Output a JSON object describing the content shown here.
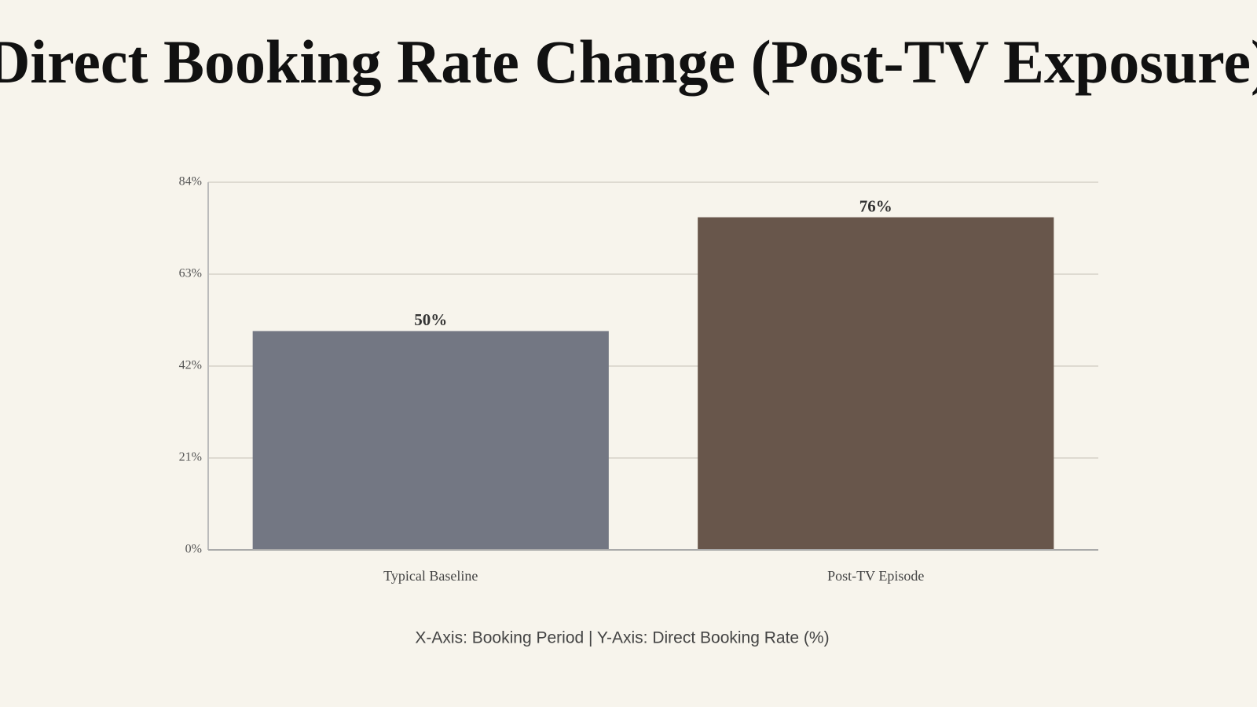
{
  "chart_data": {
    "type": "bar",
    "title": "Direct Booking Rate Change (Post-TV Exposure)",
    "categories": [
      "Typical Baseline",
      "Post-TV Episode"
    ],
    "values": [
      50,
      76
    ],
    "value_labels": [
      "50%",
      "76%"
    ],
    "colors": [
      "#737783",
      "#68564b"
    ],
    "ylim": [
      0,
      84
    ],
    "yticks": [
      {
        "value": 0,
        "label": "0%"
      },
      {
        "value": 21,
        "label": "21%"
      },
      {
        "value": 42,
        "label": "42%"
      },
      {
        "value": 63,
        "label": "63%"
      },
      {
        "value": 84,
        "label": "84%"
      }
    ],
    "grid": true,
    "caption": "X-Axis: Booking Period | Y-Axis: Direct Booking Rate (%)"
  }
}
